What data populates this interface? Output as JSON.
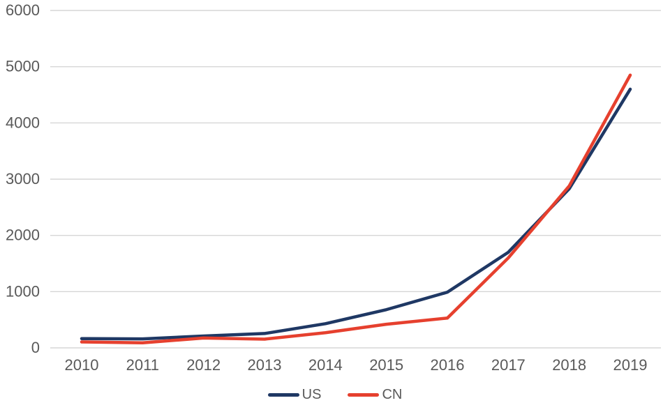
{
  "chart_data": {
    "type": "line",
    "title": "",
    "xlabel": "",
    "ylabel": "",
    "x": [
      2010,
      2011,
      2012,
      2013,
      2014,
      2015,
      2016,
      2017,
      2018,
      2019
    ],
    "series": [
      {
        "name": "US",
        "color": "#1f3864",
        "values": [
          165,
          160,
          210,
          255,
          430,
          680,
          990,
          1700,
          2830,
          4600
        ]
      },
      {
        "name": "CN",
        "color": "#e6402e",
        "values": [
          105,
          90,
          175,
          155,
          270,
          420,
          530,
          1600,
          2880,
          4850
        ]
      }
    ],
    "ylim": [
      0,
      6000
    ],
    "yticks": [
      0,
      1000,
      2000,
      3000,
      4000,
      5000,
      6000
    ],
    "grid": true,
    "gridline_color": "#d6d6d6",
    "axis_label_color": "#595959",
    "legend_position": "bottom"
  }
}
